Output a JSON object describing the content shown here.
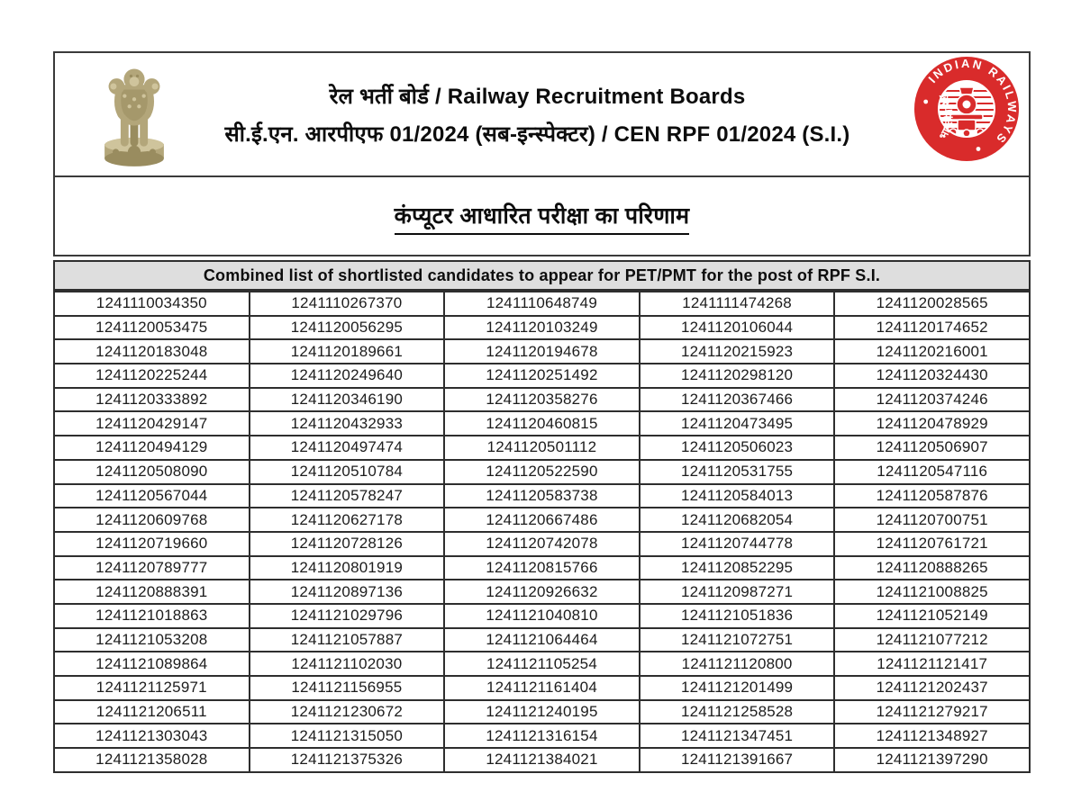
{
  "header": {
    "line1": "रेल भर्ती बोर्ड / Railway Recruitment Boards",
    "line2": "सी.ई.एन. आरपीएफ 01/2024 (सब-इन्स्पेक्टर) / CEN RPF 01/2024 (S.I.)",
    "emblem_icon": "ashoka-lion-capital",
    "railway_logo": {
      "left_text": "भारतीय रेल",
      "right_text": "INDIAN RAILWAYS"
    }
  },
  "section_title": "कंप्यूटर आधारित परीक्षा का परिणाम",
  "table": {
    "caption": "Combined list of shortlisted candidates to appear for PET/PMT for the post of RPF S.I.",
    "columns": 5,
    "rows": [
      [
        "1241110034350",
        "1241110267370",
        "1241110648749",
        "1241111474268",
        "1241120028565"
      ],
      [
        "1241120053475",
        "1241120056295",
        "1241120103249",
        "1241120106044",
        "1241120174652"
      ],
      [
        "1241120183048",
        "1241120189661",
        "1241120194678",
        "1241120215923",
        "1241120216001"
      ],
      [
        "1241120225244",
        "1241120249640",
        "1241120251492",
        "1241120298120",
        "1241120324430"
      ],
      [
        "1241120333892",
        "1241120346190",
        "1241120358276",
        "1241120367466",
        "1241120374246"
      ],
      [
        "1241120429147",
        "1241120432933",
        "1241120460815",
        "1241120473495",
        "1241120478929"
      ],
      [
        "1241120494129",
        "1241120497474",
        "1241120501112",
        "1241120506023",
        "1241120506907"
      ],
      [
        "1241120508090",
        "1241120510784",
        "1241120522590",
        "1241120531755",
        "1241120547116"
      ],
      [
        "1241120567044",
        "1241120578247",
        "1241120583738",
        "1241120584013",
        "1241120587876"
      ],
      [
        "1241120609768",
        "1241120627178",
        "1241120667486",
        "1241120682054",
        "1241120700751"
      ],
      [
        "1241120719660",
        "1241120728126",
        "1241120742078",
        "1241120744778",
        "1241120761721"
      ],
      [
        "1241120789777",
        "1241120801919",
        "1241120815766",
        "1241120852295",
        "1241120888265"
      ],
      [
        "1241120888391",
        "1241120897136",
        "1241120926632",
        "1241120987271",
        "1241121008825"
      ],
      [
        "1241121018863",
        "1241121029796",
        "1241121040810",
        "1241121051836",
        "1241121052149"
      ],
      [
        "1241121053208",
        "1241121057887",
        "1241121064464",
        "1241121072751",
        "1241121077212"
      ],
      [
        "1241121089864",
        "1241121102030",
        "1241121105254",
        "1241121120800",
        "1241121121417"
      ],
      [
        "1241121125971",
        "1241121156955",
        "1241121161404",
        "1241121201499",
        "1241121202437"
      ],
      [
        "1241121206511",
        "1241121230672",
        "1241121240195",
        "1241121258528",
        "1241121279217"
      ],
      [
        "1241121303043",
        "1241121315050",
        "1241121316154",
        "1241121347451",
        "1241121348927"
      ],
      [
        "1241121358028",
        "1241121375326",
        "1241121384021",
        "1241121391667",
        "1241121397290"
      ]
    ]
  },
  "colors": {
    "logo_red": "#d92b2b",
    "caption_bg": "#dedede",
    "table_border": "#2e2e2e",
    "text": "#1c1c1c",
    "emblem_tan": "#b3a67a"
  }
}
